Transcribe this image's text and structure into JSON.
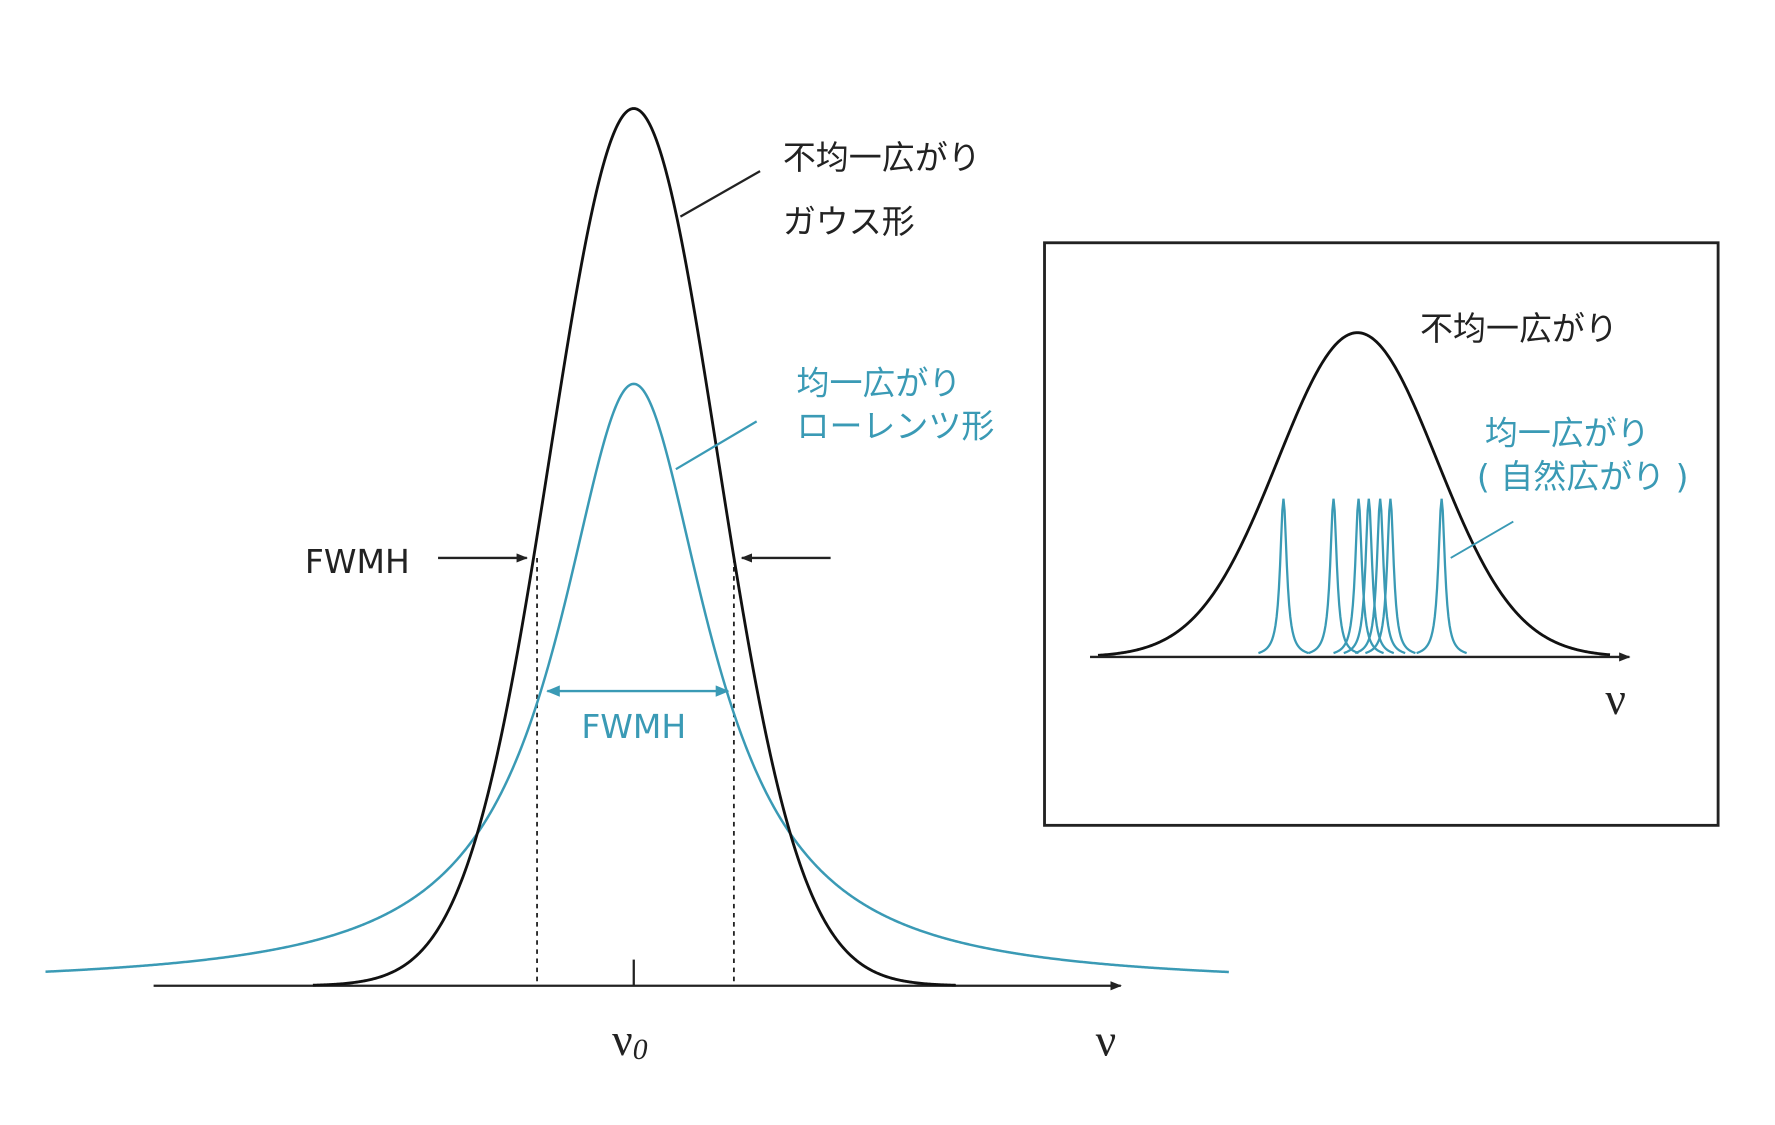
{
  "main": {
    "gaussian_label": [
      "不均一広がり",
      "ガウス形"
    ],
    "lorentz_label": [
      "均一広がり",
      "ローレンツ形"
    ],
    "fwmh_black": "FWMH",
    "fwmh_blue": "FWMH",
    "center_label": {
      "symbol": "ν",
      "subscript": "0"
    },
    "axis_label": "ν"
  },
  "inset": {
    "inhomogeneous_label": "不均一広がり",
    "homogeneous_label": [
      "均一広がり",
      "( 自然広がり )"
    ],
    "axis_label": "ν"
  }
}
